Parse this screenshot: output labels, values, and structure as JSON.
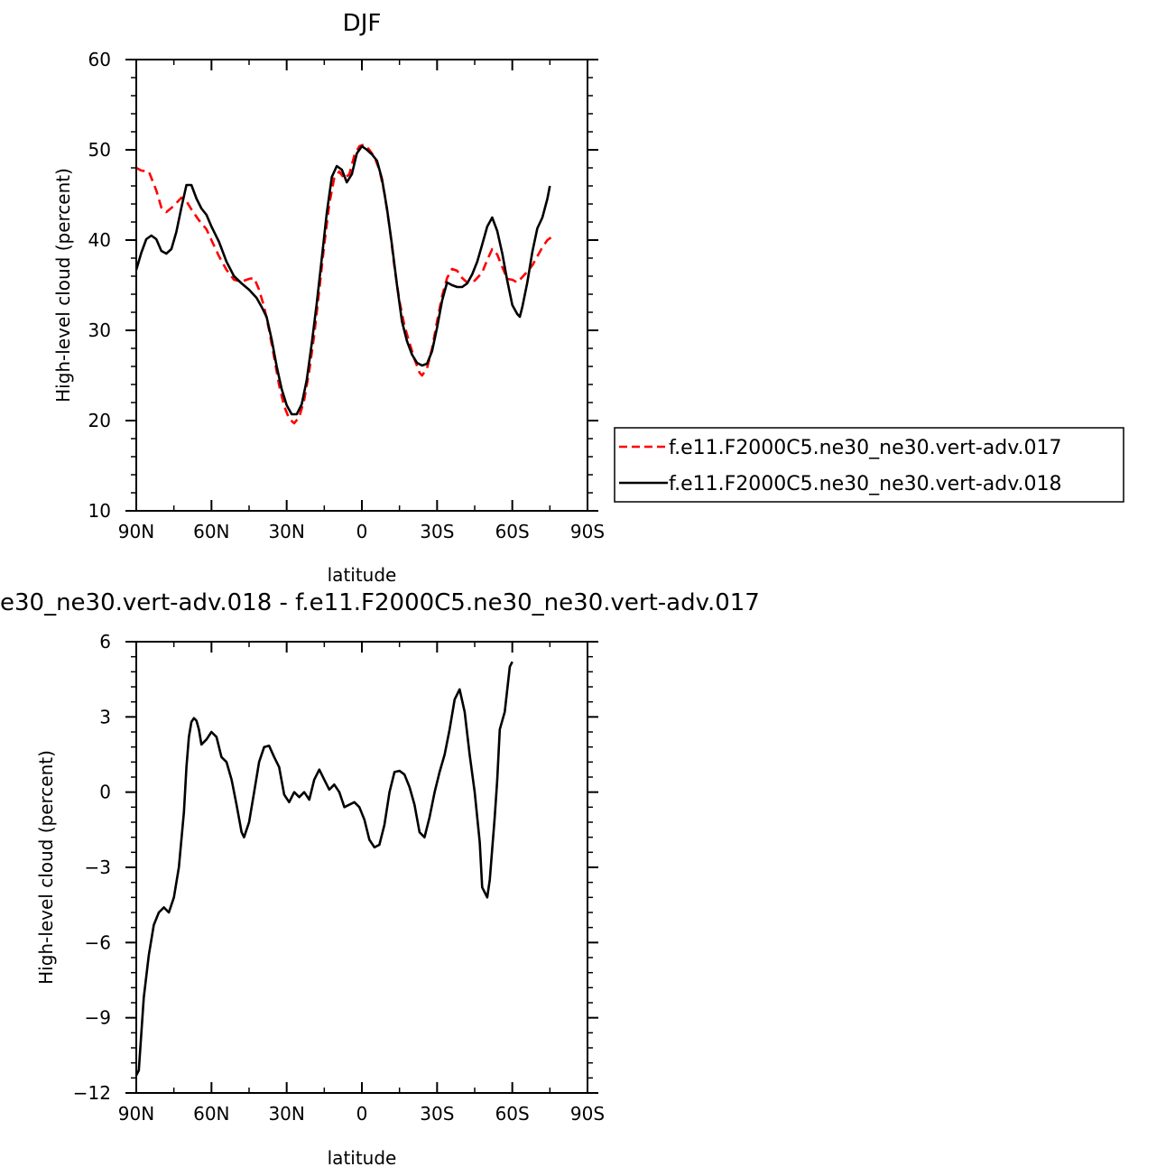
{
  "chart_data": [
    {
      "type": "line",
      "title": "DJF",
      "xlabel": "latitude",
      "ylabel": "High-level cloud (percent)",
      "xlim": [
        -90,
        90
      ],
      "ylim": [
        10,
        60
      ],
      "xticks": [
        -90,
        -60,
        -30,
        0,
        30,
        60,
        90
      ],
      "xtick_labels": [
        "90N",
        "60N",
        "30N",
        "0",
        "30S",
        "60S",
        "90S"
      ],
      "yticks": [
        10,
        20,
        30,
        40,
        50,
        60
      ],
      "ytick_labels": [
        "10",
        "20",
        "30",
        "40",
        "50",
        "60"
      ],
      "legend_position": "right",
      "grid": false,
      "series": [
        {
          "name": "f.e11.F2000C5.ne30_ne30.vert-adv.017",
          "color": "#ff0000",
          "dash": "dashed",
          "points": [
            [
              -90,
              48.0
            ],
            [
              -88,
              47.7
            ],
            [
              -85,
              47.6
            ],
            [
              -82,
              45.5
            ],
            [
              -80,
              43.6
            ],
            [
              -78,
              43.1
            ],
            [
              -75,
              43.8
            ],
            [
              -72,
              44.7
            ],
            [
              -70,
              44.3
            ],
            [
              -68,
              43.4
            ],
            [
              -65,
              42.2
            ],
            [
              -62,
              41.2
            ],
            [
              -60,
              40.0
            ],
            [
              -57,
              38.2
            ],
            [
              -54,
              36.7
            ],
            [
              -51,
              35.6
            ],
            [
              -48,
              35.4
            ],
            [
              -45,
              35.7
            ],
            [
              -43,
              35.8
            ],
            [
              -41,
              34.5
            ],
            [
              -39,
              32.6
            ],
            [
              -37,
              30.0
            ],
            [
              -35,
              27.0
            ],
            [
              -33,
              23.9
            ],
            [
              -31,
              21.6
            ],
            [
              -29,
              20.2
            ],
            [
              -27,
              19.7
            ],
            [
              -25,
              20.4
            ],
            [
              -23,
              22.3
            ],
            [
              -21,
              25.5
            ],
            [
              -19,
              29.5
            ],
            [
              -17,
              34.5
            ],
            [
              -15,
              39.5
            ],
            [
              -13,
              44.0
            ],
            [
              -11,
              46.9
            ],
            [
              -9,
              47.6
            ],
            [
              -7,
              46.8
            ],
            [
              -5,
              47.3
            ],
            [
              -3,
              49.4
            ],
            [
              -1,
              50.4
            ],
            [
              1,
              50.6
            ],
            [
              3,
              50.0
            ],
            [
              5,
              49.2
            ],
            [
              7,
              47.8
            ],
            [
              9,
              45.2
            ],
            [
              11,
              41.5
            ],
            [
              13,
              37.0
            ],
            [
              15,
              33.2
            ],
            [
              17,
              30.5
            ],
            [
              19,
              28.6
            ],
            [
              21,
              26.8
            ],
            [
              23,
              25.3
            ],
            [
              24,
              25.0
            ],
            [
              26,
              25.8
            ],
            [
              28,
              28.0
            ],
            [
              30,
              31.0
            ],
            [
              32,
              33.8
            ],
            [
              34,
              35.8
            ],
            [
              36,
              36.8
            ],
            [
              38,
              36.6
            ],
            [
              40,
              35.8
            ],
            [
              42,
              35.3
            ],
            [
              45,
              35.5
            ],
            [
              48,
              36.4
            ],
            [
              50,
              37.8
            ],
            [
              52,
              39.0
            ],
            [
              54,
              38.4
            ],
            [
              56,
              37.0
            ],
            [
              58,
              35.7
            ],
            [
              60,
              35.6
            ],
            [
              62,
              35.3
            ],
            [
              64,
              35.9
            ],
            [
              66,
              36.5
            ],
            [
              68,
              37.2
            ],
            [
              70,
              38.2
            ],
            [
              72,
              39.2
            ],
            [
              74,
              40.0
            ],
            [
              76,
              40.4
            ]
          ]
        },
        {
          "name": "f.e11.F2000C5.ne30_ne30.vert-adv.018",
          "color": "#000000",
          "dash": "solid",
          "points": [
            [
              -90,
              36.7
            ],
            [
              -88,
              38.6
            ],
            [
              -86,
              40.1
            ],
            [
              -84,
              40.5
            ],
            [
              -82,
              40.1
            ],
            [
              -80,
              38.8
            ],
            [
              -78,
              38.5
            ],
            [
              -76,
              39.0
            ],
            [
              -74,
              40.9
            ],
            [
              -72,
              43.6
            ],
            [
              -70,
              46.1
            ],
            [
              -68,
              46.1
            ],
            [
              -66,
              44.6
            ],
            [
              -64,
              43.5
            ],
            [
              -62,
              42.8
            ],
            [
              -60,
              41.5
            ],
            [
              -57,
              39.8
            ],
            [
              -54,
              37.6
            ],
            [
              -51,
              36.0
            ],
            [
              -48,
              35.2
            ],
            [
              -45,
              34.5
            ],
            [
              -42,
              33.6
            ],
            [
              -40,
              32.6
            ],
            [
              -38,
              31.5
            ],
            [
              -36,
              29.0
            ],
            [
              -34,
              26.0
            ],
            [
              -32,
              23.5
            ],
            [
              -30,
              21.7
            ],
            [
              -28,
              20.7
            ],
            [
              -26,
              20.7
            ],
            [
              -24,
              21.8
            ],
            [
              -22,
              24.5
            ],
            [
              -20,
              28.5
            ],
            [
              -18,
              33.0
            ],
            [
              -16,
              38.0
            ],
            [
              -14,
              43.0
            ],
            [
              -12,
              47.0
            ],
            [
              -10,
              48.2
            ],
            [
              -8,
              47.8
            ],
            [
              -6,
              46.4
            ],
            [
              -4,
              47.3
            ],
            [
              -2,
              49.6
            ],
            [
              0,
              50.4
            ],
            [
              2,
              50.0
            ],
            [
              4,
              49.5
            ],
            [
              6,
              48.8
            ],
            [
              8,
              46.8
            ],
            [
              10,
              43.5
            ],
            [
              12,
              39.5
            ],
            [
              14,
              35.0
            ],
            [
              16,
              31.0
            ],
            [
              18,
              28.8
            ],
            [
              20,
              27.3
            ],
            [
              22,
              26.4
            ],
            [
              24,
              26.1
            ],
            [
              26,
              26.3
            ],
            [
              28,
              27.7
            ],
            [
              30,
              30.3
            ],
            [
              32,
              33.3
            ],
            [
              34,
              35.3
            ],
            [
              36,
              35.0
            ],
            [
              38,
              34.8
            ],
            [
              40,
              34.8
            ],
            [
              42,
              35.2
            ],
            [
              44,
              36.2
            ],
            [
              46,
              37.6
            ],
            [
              48,
              39.5
            ],
            [
              50,
              41.5
            ],
            [
              52,
              42.5
            ],
            [
              54,
              41.0
            ],
            [
              56,
              38.5
            ],
            [
              58,
              35.5
            ],
            [
              60,
              32.8
            ],
            [
              62,
              31.8
            ],
            [
              63,
              31.5
            ],
            [
              64,
              32.6
            ],
            [
              66,
              35.3
            ],
            [
              68,
              38.7
            ],
            [
              70,
              41.3
            ],
            [
              72,
              42.5
            ],
            [
              74,
              44.6
            ],
            [
              75,
              46.0
            ]
          ]
        }
      ]
    },
    {
      "type": "line",
      "title": "e30_ne30.vert-adv.018 - f.e11.F2000C5.ne30_ne30.vert-adv.017",
      "xlabel": "latitude",
      "ylabel": "High-level cloud (percent)",
      "xlim": [
        -90,
        90
      ],
      "ylim": [
        -12,
        6
      ],
      "xticks": [
        -90,
        -60,
        -30,
        0,
        30,
        60,
        90
      ],
      "xtick_labels": [
        "90N",
        "60N",
        "30N",
        "0",
        "30S",
        "60S",
        "90S"
      ],
      "yticks": [
        -12,
        -9,
        -6,
        -3,
        0,
        3,
        6
      ],
      "ytick_labels": [
        "-12",
        "-9",
        "-6",
        "-3",
        "0",
        "3",
        "6"
      ],
      "grid": false,
      "series": [
        {
          "color": "#000000",
          "dash": "solid",
          "points": [
            [
              -90,
              -11.3
            ],
            [
              -89,
              -11.1
            ],
            [
              -87,
              -8.2
            ],
            [
              -85,
              -6.5
            ],
            [
              -83,
              -5.3
            ],
            [
              -81,
              -4.8
            ],
            [
              -79,
              -4.6
            ],
            [
              -77,
              -4.8
            ],
            [
              -75,
              -4.2
            ],
            [
              -73,
              -3.0
            ],
            [
              -71,
              -0.8
            ],
            [
              -70,
              1.0
            ],
            [
              -69,
              2.2
            ],
            [
              -68,
              2.8
            ],
            [
              -67,
              2.95
            ],
            [
              -66,
              2.85
            ],
            [
              -65,
              2.5
            ],
            [
              -64,
              1.9
            ],
            [
              -62,
              2.1
            ],
            [
              -60,
              2.4
            ],
            [
              -58,
              2.2
            ],
            [
              -56,
              1.4
            ],
            [
              -54,
              1.2
            ],
            [
              -52,
              0.5
            ],
            [
              -50,
              -0.5
            ],
            [
              -48,
              -1.6
            ],
            [
              -47,
              -1.8
            ],
            [
              -45,
              -1.2
            ],
            [
              -43,
              0.0
            ],
            [
              -41,
              1.2
            ],
            [
              -39,
              1.8
            ],
            [
              -37,
              1.85
            ],
            [
              -35,
              1.4
            ],
            [
              -33,
              1.0
            ],
            [
              -31,
              -0.1
            ],
            [
              -29,
              -0.4
            ],
            [
              -27,
              0.0
            ],
            [
              -25,
              -0.2
            ],
            [
              -23,
              0.0
            ],
            [
              -21,
              -0.3
            ],
            [
              -19,
              0.5
            ],
            [
              -17,
              0.9
            ],
            [
              -15,
              0.5
            ],
            [
              -13,
              0.1
            ],
            [
              -11,
              0.3
            ],
            [
              -9,
              0.0
            ],
            [
              -7,
              -0.6
            ],
            [
              -5,
              -0.5
            ],
            [
              -3,
              -0.4
            ],
            [
              -1,
              -0.6
            ],
            [
              1,
              -1.1
            ],
            [
              3,
              -1.9
            ],
            [
              5,
              -2.2
            ],
            [
              7,
              -2.1
            ],
            [
              9,
              -1.3
            ],
            [
              11,
              0.0
            ],
            [
              13,
              0.8
            ],
            [
              15,
              0.85
            ],
            [
              17,
              0.7
            ],
            [
              19,
              0.2
            ],
            [
              21,
              -0.5
            ],
            [
              23,
              -1.6
            ],
            [
              25,
              -1.8
            ],
            [
              27,
              -1.0
            ],
            [
              29,
              0.0
            ],
            [
              31,
              0.8
            ],
            [
              33,
              1.5
            ],
            [
              35,
              2.5
            ],
            [
              37,
              3.7
            ],
            [
              39,
              4.1
            ],
            [
              41,
              3.2
            ],
            [
              43,
              1.5
            ],
            [
              45,
              0.0
            ],
            [
              47,
              -2.0
            ],
            [
              48,
              -3.8
            ],
            [
              50,
              -4.2
            ],
            [
              51,
              -3.5
            ],
            [
              53,
              -1.0
            ],
            [
              54,
              0.5
            ],
            [
              55,
              2.5
            ],
            [
              57,
              3.2
            ],
            [
              59,
              5.0
            ],
            [
              60,
              5.2
            ]
          ]
        }
      ]
    }
  ]
}
